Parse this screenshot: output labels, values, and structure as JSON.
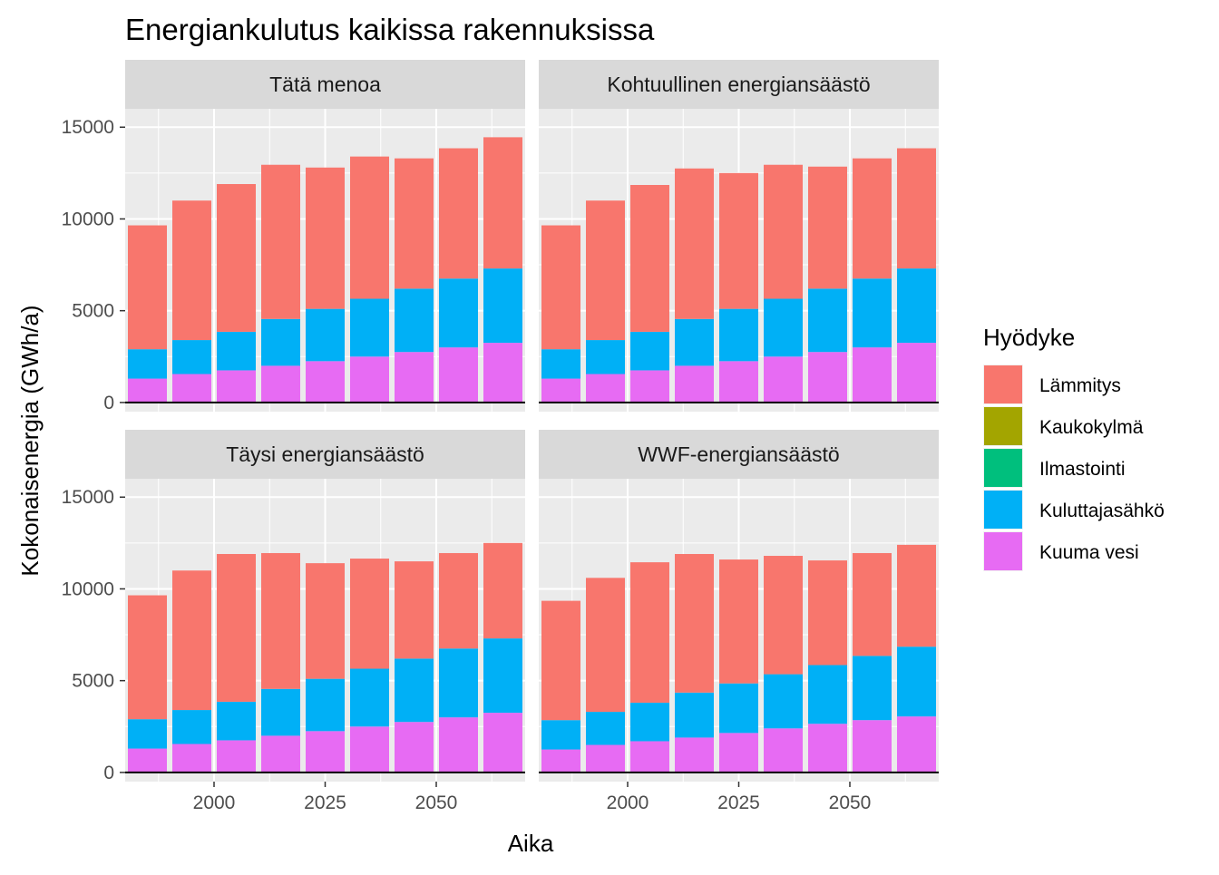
{
  "chart_data": {
    "type": "bar",
    "stacked": true,
    "faceted": true,
    "title": "Energiankulutus kaikissa rakennuksissa",
    "xlabel": "Aika",
    "ylabel": "Kokonaisenergia (GWh/a)",
    "x": [
      1985,
      1995,
      2005,
      2015,
      2025,
      2035,
      2045,
      2055,
      2065
    ],
    "xlim": [
      1980,
      2070
    ],
    "ylim": [
      -500,
      16000
    ],
    "x_ticks": [
      2000,
      2025,
      2050
    ],
    "x_tick_labels": [
      "2000",
      "2025",
      "2050"
    ],
    "y_ticks": [
      0,
      5000,
      10000,
      15000
    ],
    "y_tick_labels": [
      "0",
      "5000",
      "10000",
      "15000"
    ],
    "grid": true,
    "legend": {
      "title": "Hyödyke",
      "placement": "right",
      "entries": [
        {
          "name": "Lämmitys",
          "color": "#F8766D"
        },
        {
          "name": "Kaukokylmä",
          "color": "#A3A500"
        },
        {
          "name": "Ilmastointi",
          "color": "#00BF7D"
        },
        {
          "name": "Kuluttajasähkö",
          "color": "#00B0F6"
        },
        {
          "name": "Kuuma vesi",
          "color": "#E76BF3"
        }
      ]
    },
    "panels": [
      {
        "name": "Tätä menoa",
        "series": [
          {
            "name": "Kuuma vesi",
            "values": [
              1300,
              1550,
              1750,
              2000,
              2250,
              2500,
              2750,
              3000,
              3250
            ]
          },
          {
            "name": "Kuluttajasähkö",
            "values": [
              1600,
              1850,
              2100,
              2550,
              2850,
              3150,
              3450,
              3750,
              4050
            ]
          },
          {
            "name": "Ilmastointi",
            "values": [
              0,
              0,
              0,
              0,
              0,
              0,
              0,
              0,
              0
            ]
          },
          {
            "name": "Kaukokylmä",
            "values": [
              0,
              0,
              0,
              0,
              0,
              0,
              0,
              0,
              0
            ]
          },
          {
            "name": "Lämmitys",
            "values": [
              6750,
              7600,
              8050,
              8400,
              7700,
              7750,
              7100,
              7100,
              7150
            ]
          }
        ]
      },
      {
        "name": "Kohtuullinen energiansäästö",
        "series": [
          {
            "name": "Kuuma vesi",
            "values": [
              1300,
              1550,
              1750,
              2000,
              2250,
              2500,
              2750,
              3000,
              3250
            ]
          },
          {
            "name": "Kuluttajasähkö",
            "values": [
              1600,
              1850,
              2100,
              2550,
              2850,
              3150,
              3450,
              3750,
              4050
            ]
          },
          {
            "name": "Ilmastointi",
            "values": [
              0,
              0,
              0,
              0,
              0,
              0,
              0,
              0,
              0
            ]
          },
          {
            "name": "Kaukokylmä",
            "values": [
              0,
              0,
              0,
              0,
              0,
              0,
              0,
              0,
              0
            ]
          },
          {
            "name": "Lämmitys",
            "values": [
              6750,
              7600,
              8000,
              8200,
              7400,
              7300,
              6650,
              6550,
              6550
            ]
          }
        ]
      },
      {
        "name": "Täysi energiansäästö",
        "series": [
          {
            "name": "Kuuma vesi",
            "values": [
              1300,
              1550,
              1750,
              2000,
              2250,
              2500,
              2750,
              3000,
              3250
            ]
          },
          {
            "name": "Kuluttajasähkö",
            "values": [
              1600,
              1850,
              2100,
              2550,
              2850,
              3150,
              3450,
              3750,
              4050
            ]
          },
          {
            "name": "Ilmastointi",
            "values": [
              0,
              0,
              0,
              0,
              0,
              0,
              0,
              0,
              0
            ]
          },
          {
            "name": "Kaukokylmä",
            "values": [
              0,
              0,
              0,
              0,
              0,
              0,
              0,
              0,
              0
            ]
          },
          {
            "name": "Lämmitys",
            "values": [
              6750,
              7600,
              8050,
              7400,
              6300,
              6000,
              5300,
              5200,
              5200
            ]
          }
        ]
      },
      {
        "name": "WWF-energiansäästö",
        "series": [
          {
            "name": "Kuuma vesi",
            "values": [
              1250,
              1500,
              1700,
              1900,
              2150,
              2400,
              2650,
              2850,
              3050
            ]
          },
          {
            "name": "Kuluttajasähkö",
            "values": [
              1600,
              1800,
              2100,
              2450,
              2700,
              2950,
              3200,
              3500,
              3800
            ]
          },
          {
            "name": "Ilmastointi",
            "values": [
              0,
              0,
              0,
              0,
              0,
              0,
              0,
              0,
              0
            ]
          },
          {
            "name": "Kaukokylmä",
            "values": [
              0,
              0,
              0,
              0,
              0,
              0,
              0,
              0,
              0
            ]
          },
          {
            "name": "Lämmitys",
            "values": [
              6500,
              7300,
              7650,
              7550,
              6750,
              6450,
              5700,
              5600,
              5550
            ]
          }
        ]
      }
    ]
  }
}
